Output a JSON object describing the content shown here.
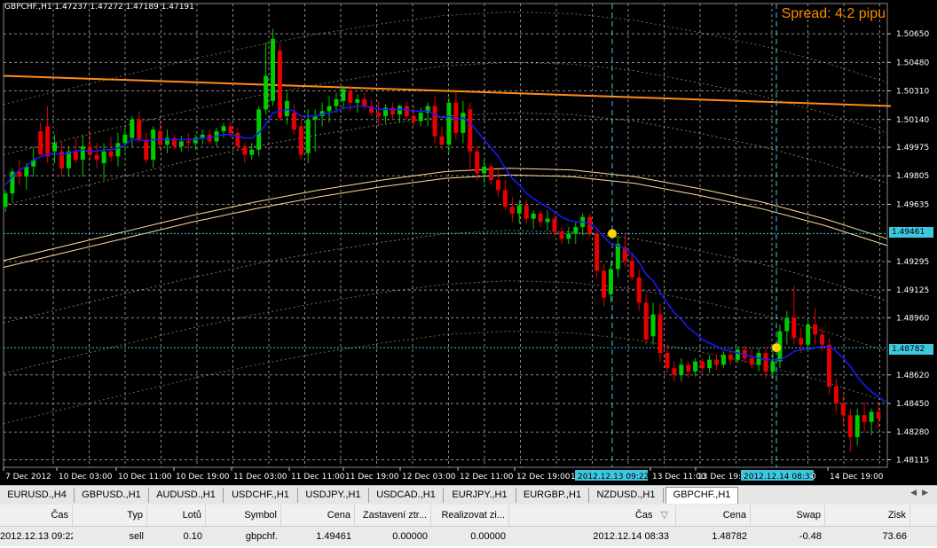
{
  "chart": {
    "title": "GBPCHF.,H1  1.47237 1.47272 1.47189 1.47191",
    "spread": "Spread: 4.2 pipu",
    "price_labels": [
      "1.50650",
      "1.50480",
      "1.50310",
      "1.50140",
      "1.49975",
      "1.49805",
      "1.49635",
      "1.49461",
      "1.49295",
      "1.49125",
      "1.48960",
      "1.48782",
      "1.48620",
      "1.48450",
      "1.48280",
      "1.48115"
    ],
    "time_labels": [
      "7 Dec 2012",
      "10 Dec 03:00",
      "10 Dec 11:00",
      "10 Dec 19:00",
      "11 Dec 03:00",
      "11 Dec 11:00",
      "11 Dec 19:00",
      "12 Dec 03:00",
      "12 Dec 11:00",
      "12 Dec 19:00",
      "2012.12.13 09:22",
      "13 Dec 11:00",
      "13 Dec 19:00",
      "2012.12.14 08:33",
      "14 Dec 19:00"
    ],
    "time_label_partials": [
      "1",
      "0"
    ],
    "highlighted_prices": [
      "1.49461",
      "1.48782"
    ],
    "highlighted_times": [
      "2012.12.13 09:22",
      "2012.12.14 08:33"
    ],
    "colors": {
      "bull": "#00cc00",
      "bear": "#e60000",
      "ma_blue": "#1a1aff",
      "orange_line": "#ff8c1a",
      "envelope": "#ffdc96",
      "grid": "#8a8a8a",
      "highlight": "#3ec8e0",
      "trade_dot": "#ffd700"
    }
  },
  "chart_data": {
    "type": "candlestick",
    "title": "GBPCHF.,H1",
    "symbol": "GBPCHF.",
    "timeframe": "H1",
    "last_quote": {
      "open": 1.47237,
      "high": 1.47272,
      "low": 1.47189,
      "close": 1.47191
    },
    "y_range": [
      1.4807,
      1.5083
    ],
    "candles": [
      {
        "o": 1.4962,
        "h": 1.4972,
        "l": 1.4959,
        "c": 1.497
      },
      {
        "o": 1.497,
        "h": 1.4985,
        "l": 1.4965,
        "c": 1.4983
      },
      {
        "o": 1.4983,
        "h": 1.499,
        "l": 1.4975,
        "c": 1.498
      },
      {
        "o": 1.498,
        "h": 1.4988,
        "l": 1.4972,
        "c": 1.4986
      },
      {
        "o": 1.4986,
        "h": 1.4997,
        "l": 1.498,
        "c": 1.499
      },
      {
        "o": 1.5007,
        "h": 1.5012,
        "l": 1.4995,
        "c": 1.4993
      },
      {
        "o": 1.501,
        "h": 1.5022,
        "l": 1.4988,
        "c": 1.4992
      },
      {
        "o": 1.4995,
        "h": 1.5005,
        "l": 1.4988,
        "c": 1.5
      },
      {
        "o": 1.4995,
        "h": 1.5001,
        "l": 1.498,
        "c": 1.4985
      },
      {
        "o": 1.4985,
        "h": 1.4998,
        "l": 1.498,
        "c": 1.4995
      },
      {
        "o": 1.4995,
        "h": 1.5003,
        "l": 1.4988,
        "c": 1.499
      },
      {
        "o": 1.499,
        "h": 1.5005,
        "l": 1.498,
        "c": 1.4998
      },
      {
        "o": 1.4998,
        "h": 1.5006,
        "l": 1.499,
        "c": 1.4993
      },
      {
        "o": 1.4993,
        "h": 1.5,
        "l": 1.4985,
        "c": 1.499
      },
      {
        "o": 1.4988,
        "h": 1.5,
        "l": 1.4978,
        "c": 1.4995
      },
      {
        "o": 1.4995,
        "h": 1.5004,
        "l": 1.4989,
        "c": 1.4992
      },
      {
        "o": 1.4992,
        "h": 1.5006,
        "l": 1.4986,
        "c": 1.5
      },
      {
        "o": 1.5,
        "h": 1.501,
        "l": 1.4995,
        "c": 1.5005
      },
      {
        "o": 1.5003,
        "h": 1.5016,
        "l": 1.4998,
        "c": 1.5014
      },
      {
        "o": 1.5014,
        "h": 1.5019,
        "l": 1.5,
        "c": 1.5002
      },
      {
        "o": 1.5002,
        "h": 1.5006,
        "l": 1.4988,
        "c": 1.499
      },
      {
        "o": 1.499,
        "h": 1.501,
        "l": 1.4985,
        "c": 1.5008
      },
      {
        "o": 1.5007,
        "h": 1.5013,
        "l": 1.4995,
        "c": 1.4999
      },
      {
        "o": 1.4999,
        "h": 1.5008,
        "l": 1.4994,
        "c": 1.5003
      },
      {
        "o": 1.5003,
        "h": 1.5005,
        "l": 1.4996,
        "c": 1.4998
      },
      {
        "o": 1.4998,
        "h": 1.5004,
        "l": 1.4995,
        "c": 1.5001
      },
      {
        "o": 1.5001,
        "h": 1.5006,
        "l": 1.4996,
        "c": 1.5
      },
      {
        "o": 1.5,
        "h": 1.5005,
        "l": 1.4996,
        "c": 1.5003
      },
      {
        "o": 1.5003,
        "h": 1.5008,
        "l": 1.4999,
        "c": 1.5005
      },
      {
        "o": 1.5005,
        "h": 1.5008,
        "l": 1.4999,
        "c": 1.5001
      },
      {
        "o": 1.5001,
        "h": 1.5009,
        "l": 1.4998,
        "c": 1.5007
      },
      {
        "o": 1.5007,
        "h": 1.5012,
        "l": 1.5003,
        "c": 1.501
      },
      {
        "o": 1.501,
        "h": 1.5013,
        "l": 1.5003,
        "c": 1.5006
      },
      {
        "o": 1.5006,
        "h": 1.5009,
        "l": 1.4996,
        "c": 1.4998
      },
      {
        "o": 1.4998,
        "h": 1.5,
        "l": 1.4988,
        "c": 1.4993
      },
      {
        "o": 1.4993,
        "h": 1.5,
        "l": 1.499,
        "c": 1.4996
      },
      {
        "o": 1.4996,
        "h": 1.5022,
        "l": 1.4992,
        "c": 1.502
      },
      {
        "o": 1.502,
        "h": 1.506,
        "l": 1.5017,
        "c": 1.504
      },
      {
        "o": 1.5025,
        "h": 1.5068,
        "l": 1.5022,
        "c": 1.5062
      },
      {
        "o": 1.5055,
        "h": 1.506,
        "l": 1.5013,
        "c": 1.5015
      },
      {
        "o": 1.5016,
        "h": 1.503,
        "l": 1.5011,
        "c": 1.5025
      },
      {
        "o": 1.5018,
        "h": 1.5023,
        "l": 1.5005,
        "c": 1.5008
      },
      {
        "o": 1.501,
        "h": 1.5015,
        "l": 1.499,
        "c": 1.4993
      },
      {
        "o": 1.4994,
        "h": 1.502,
        "l": 1.4988,
        "c": 1.5014
      },
      {
        "o": 1.5014,
        "h": 1.502,
        "l": 1.4995,
        "c": 1.5016
      },
      {
        "o": 1.5016,
        "h": 1.5024,
        "l": 1.501,
        "c": 1.5019
      },
      {
        "o": 1.5019,
        "h": 1.5028,
        "l": 1.5012,
        "c": 1.5022
      },
      {
        "o": 1.5022,
        "h": 1.503,
        "l": 1.5018,
        "c": 1.5026
      },
      {
        "o": 1.5025,
        "h": 1.5034,
        "l": 1.502,
        "c": 1.5032
      },
      {
        "o": 1.5031,
        "h": 1.5034,
        "l": 1.5019,
        "c": 1.5024
      },
      {
        "o": 1.5024,
        "h": 1.5029,
        "l": 1.5018,
        "c": 1.5026
      },
      {
        "o": 1.5026,
        "h": 1.503,
        "l": 1.502,
        "c": 1.5022
      },
      {
        "o": 1.5022,
        "h": 1.5026,
        "l": 1.5016,
        "c": 1.5018
      },
      {
        "o": 1.5018,
        "h": 1.5025,
        "l": 1.501,
        "c": 1.5016
      },
      {
        "o": 1.5016,
        "h": 1.5023,
        "l": 1.5012,
        "c": 1.5021
      },
      {
        "o": 1.5021,
        "h": 1.5024,
        "l": 1.5014,
        "c": 1.5017
      },
      {
        "o": 1.5017,
        "h": 1.5023,
        "l": 1.5012,
        "c": 1.5022
      },
      {
        "o": 1.5022,
        "h": 1.5025,
        "l": 1.5014,
        "c": 1.5016
      },
      {
        "o": 1.5016,
        "h": 1.5022,
        "l": 1.501,
        "c": 1.5013
      },
      {
        "o": 1.5013,
        "h": 1.5021,
        "l": 1.501,
        "c": 1.5018
      },
      {
        "o": 1.5018,
        "h": 1.5024,
        "l": 1.501,
        "c": 1.5022
      },
      {
        "o": 1.5022,
        "h": 1.5028,
        "l": 1.5,
        "c": 1.5004
      },
      {
        "o": 1.5004,
        "h": 1.501,
        "l": 1.4996,
        "c": 1.4999
      },
      {
        "o": 1.4999,
        "h": 1.5027,
        "l": 1.4994,
        "c": 1.5024
      },
      {
        "o": 1.5024,
        "h": 1.503,
        "l": 1.5002,
        "c": 1.5006
      },
      {
        "o": 1.5006,
        "h": 1.5025,
        "l": 1.5,
        "c": 1.5018
      },
      {
        "o": 1.502,
        "h": 1.5024,
        "l": 1.4985,
        "c": 1.4995
      },
      {
        "o": 1.4995,
        "h": 1.4998,
        "l": 1.4978,
        "c": 1.4982
      },
      {
        "o": 1.4982,
        "h": 1.499,
        "l": 1.4976,
        "c": 1.4986
      },
      {
        "o": 1.4986,
        "h": 1.4988,
        "l": 1.4975,
        "c": 1.4978
      },
      {
        "o": 1.4978,
        "h": 1.4984,
        "l": 1.4968,
        "c": 1.4972
      },
      {
        "o": 1.4972,
        "h": 1.4978,
        "l": 1.496,
        "c": 1.4962
      },
      {
        "o": 1.4962,
        "h": 1.4968,
        "l": 1.4953,
        "c": 1.4958
      },
      {
        "o": 1.4958,
        "h": 1.4966,
        "l": 1.4952,
        "c": 1.4963
      },
      {
        "o": 1.4963,
        "h": 1.4966,
        "l": 1.4952,
        "c": 1.4955
      },
      {
        "o": 1.4955,
        "h": 1.496,
        "l": 1.4949,
        "c": 1.4958
      },
      {
        "o": 1.4958,
        "h": 1.496,
        "l": 1.495,
        "c": 1.4953
      },
      {
        "o": 1.4953,
        "h": 1.496,
        "l": 1.4948,
        "c": 1.4955
      },
      {
        "o": 1.4955,
        "h": 1.4958,
        "l": 1.4944,
        "c": 1.4947
      },
      {
        "o": 1.4947,
        "h": 1.495,
        "l": 1.494,
        "c": 1.4943
      },
      {
        "o": 1.4943,
        "h": 1.495,
        "l": 1.494,
        "c": 1.4946
      },
      {
        "o": 1.4946,
        "h": 1.4953,
        "l": 1.494,
        "c": 1.495
      },
      {
        "o": 1.495,
        "h": 1.4958,
        "l": 1.4945,
        "c": 1.4956
      },
      {
        "o": 1.4956,
        "h": 1.4958,
        "l": 1.4944,
        "c": 1.4946
      },
      {
        "o": 1.4946,
        "h": 1.4948,
        "l": 1.492,
        "c": 1.4924
      },
      {
        "o": 1.4924,
        "h": 1.4928,
        "l": 1.4903,
        "c": 1.4908
      },
      {
        "o": 1.491,
        "h": 1.493,
        "l": 1.4905,
        "c": 1.4925
      },
      {
        "o": 1.4925,
        "h": 1.4945,
        "l": 1.492,
        "c": 1.494
      },
      {
        "o": 1.4938,
        "h": 1.4946,
        "l": 1.4926,
        "c": 1.493
      },
      {
        "o": 1.493,
        "h": 1.4935,
        "l": 1.4918,
        "c": 1.492
      },
      {
        "o": 1.492,
        "h": 1.4925,
        "l": 1.49,
        "c": 1.4905
      },
      {
        "o": 1.4905,
        "h": 1.491,
        "l": 1.488,
        "c": 1.4883
      },
      {
        "o": 1.4885,
        "h": 1.4905,
        "l": 1.488,
        "c": 1.4898
      },
      {
        "o": 1.4898,
        "h": 1.4904,
        "l": 1.487,
        "c": 1.4875
      },
      {
        "o": 1.4875,
        "h": 1.488,
        "l": 1.4863,
        "c": 1.4866
      },
      {
        "o": 1.4866,
        "h": 1.487,
        "l": 1.4858,
        "c": 1.4862
      },
      {
        "o": 1.4862,
        "h": 1.4872,
        "l": 1.4858,
        "c": 1.4868
      },
      {
        "o": 1.4868,
        "h": 1.487,
        "l": 1.486,
        "c": 1.4864
      },
      {
        "o": 1.4864,
        "h": 1.4872,
        "l": 1.4861,
        "c": 1.487
      },
      {
        "o": 1.487,
        "h": 1.4872,
        "l": 1.4862,
        "c": 1.4866
      },
      {
        "o": 1.4866,
        "h": 1.4874,
        "l": 1.4863,
        "c": 1.4871
      },
      {
        "o": 1.4871,
        "h": 1.4874,
        "l": 1.4865,
        "c": 1.4868
      },
      {
        "o": 1.4868,
        "h": 1.4876,
        "l": 1.4866,
        "c": 1.4874
      },
      {
        "o": 1.4874,
        "h": 1.4878,
        "l": 1.4868,
        "c": 1.4871
      },
      {
        "o": 1.4871,
        "h": 1.4879,
        "l": 1.4869,
        "c": 1.4877
      },
      {
        "o": 1.4877,
        "h": 1.488,
        "l": 1.4869,
        "c": 1.4872
      },
      {
        "o": 1.4872,
        "h": 1.4878,
        "l": 1.4866,
        "c": 1.4868
      },
      {
        "o": 1.4868,
        "h": 1.4878,
        "l": 1.4864,
        "c": 1.4875
      },
      {
        "o": 1.4875,
        "h": 1.4878,
        "l": 1.486,
        "c": 1.4864
      },
      {
        "o": 1.4864,
        "h": 1.4876,
        "l": 1.486,
        "c": 1.487
      },
      {
        "o": 1.487,
        "h": 1.4892,
        "l": 1.4866,
        "c": 1.4888
      },
      {
        "o": 1.4888,
        "h": 1.49,
        "l": 1.488,
        "c": 1.4896
      },
      {
        "o": 1.4896,
        "h": 1.4915,
        "l": 1.488,
        "c": 1.4884
      },
      {
        "o": 1.4884,
        "h": 1.489,
        "l": 1.4875,
        "c": 1.488
      },
      {
        "o": 1.488,
        "h": 1.4895,
        "l": 1.4876,
        "c": 1.4892
      },
      {
        "o": 1.4892,
        "h": 1.4902,
        "l": 1.488,
        "c": 1.4886
      },
      {
        "o": 1.4886,
        "h": 1.489,
        "l": 1.4876,
        "c": 1.488
      },
      {
        "o": 1.488,
        "h": 1.4884,
        "l": 1.485,
        "c": 1.4855
      },
      {
        "o": 1.4855,
        "h": 1.486,
        "l": 1.484,
        "c": 1.4845
      },
      {
        "o": 1.4845,
        "h": 1.485,
        "l": 1.4832,
        "c": 1.4838
      },
      {
        "o": 1.4838,
        "h": 1.4842,
        "l": 1.4816,
        "c": 1.4825
      },
      {
        "o": 1.4825,
        "h": 1.4842,
        "l": 1.482,
        "c": 1.4838
      },
      {
        "o": 1.4838,
        "h": 1.4846,
        "l": 1.4828,
        "c": 1.4834
      },
      {
        "o": 1.4834,
        "h": 1.4842,
        "l": 1.4826,
        "c": 1.484
      },
      {
        "o": 1.484,
        "h": 1.4846,
        "l": 1.483,
        "c": 1.4836
      }
    ],
    "ma_blue": [
      1.4975,
      1.498,
      1.4984,
      1.4986,
      1.499,
      1.4992,
      1.4993,
      1.4994,
      1.4993,
      1.4994,
      1.4995,
      1.4996,
      1.4995,
      1.4995,
      1.4996,
      1.4996,
      1.4997,
      1.4999,
      1.5002,
      1.5002,
      1.5001,
      1.5002,
      1.5002,
      1.5002,
      1.5002,
      1.5002,
      1.5002,
      1.5002,
      1.5003,
      1.5003,
      1.5004,
      1.5005,
      1.5005,
      1.5004,
      1.5003,
      1.5003,
      1.5006,
      1.5011,
      1.5018,
      1.5019,
      1.502,
      1.5019,
      1.5016,
      1.5016,
      1.5016,
      1.5017,
      1.5018,
      1.5019,
      1.5021,
      1.5021,
      1.5022,
      1.5022,
      1.5021,
      1.502,
      1.502,
      1.502,
      1.502,
      1.502,
      1.5019,
      1.5019,
      1.5019,
      1.5017,
      1.5015,
      1.5016,
      1.5014,
      1.5015,
      1.5012,
      1.5007,
      1.5002,
      1.4997,
      1.4992,
      1.4985,
      1.4979,
      1.4975,
      1.497,
      1.4967,
      1.4964,
      1.4962,
      1.4959,
      1.4956,
      1.4954,
      1.4953,
      1.4953,
      1.4952,
      1.4949,
      1.4944,
      1.494,
      1.4939,
      1.4937,
      1.4934,
      1.4929,
      1.4922,
      1.4918,
      1.4911,
      1.4905,
      1.4899,
      1.4895,
      1.489,
      1.4887,
      1.4883,
      1.4881,
      1.4879,
      1.4877,
      1.4876,
      1.4875,
      1.4874,
      1.4873,
      1.4872,
      1.4871,
      1.4871,
      1.4871,
      1.4873,
      1.4876,
      1.4877,
      1.4877,
      1.4878,
      1.4879,
      1.4879,
      1.4876,
      1.4872,
      1.4867,
      1.4861,
      1.4856,
      1.4852,
      1.4849,
      1.4846
    ],
    "orange_line": [
      [
        0,
        1.504
      ],
      [
        1000,
        1.5022
      ]
    ],
    "envelope_mid": [
      1.4928,
      1.4937,
      1.4946,
      1.4955,
      1.4963,
      1.497,
      1.4976,
      1.4981,
      1.4983,
      1.4982,
      1.4978,
      1.4971,
      1.4963,
      1.4953,
      1.4941
    ],
    "horizontal_lines": [
      1.49461,
      1.48782
    ],
    "trades": [
      {
        "type": "sell",
        "open_time": "2012.12.13 09:22",
        "open_price": 1.49461,
        "close_time": "2012.12.14 08:33",
        "close_price": 1.48782
      }
    ]
  },
  "tabs": [
    {
      "label": "EURUSD.,H4"
    },
    {
      "label": "GBPUSD.,H1"
    },
    {
      "label": "AUDUSD.,H1"
    },
    {
      "label": "USDCHF.,H1"
    },
    {
      "label": "USDJPY.,H1"
    },
    {
      "label": "USDCAD.,H1"
    },
    {
      "label": "EURJPY.,H1"
    },
    {
      "label": "EURGBP.,H1"
    },
    {
      "label": "NZDUSD.,H1"
    },
    {
      "label": "GBPCHF.,H1"
    }
  ],
  "active_tab": "GBPCHF.,H1",
  "table": {
    "headers": [
      "Čas",
      "Typ",
      "Lotů",
      "Symbol",
      "Cena",
      "Zastavení ztr...",
      "Realizovat zi...",
      "Čas",
      "Cena",
      "Swap",
      "Zisk"
    ],
    "sort_indicator": "▽",
    "row": [
      "2012.12.13 09:22",
      "sell",
      "0.10",
      "gbpchf.",
      "1.49461",
      "0.00000",
      "0.00000",
      "2012.12.14 08:33",
      "1.48782",
      "-0.48",
      "73.66"
    ]
  }
}
